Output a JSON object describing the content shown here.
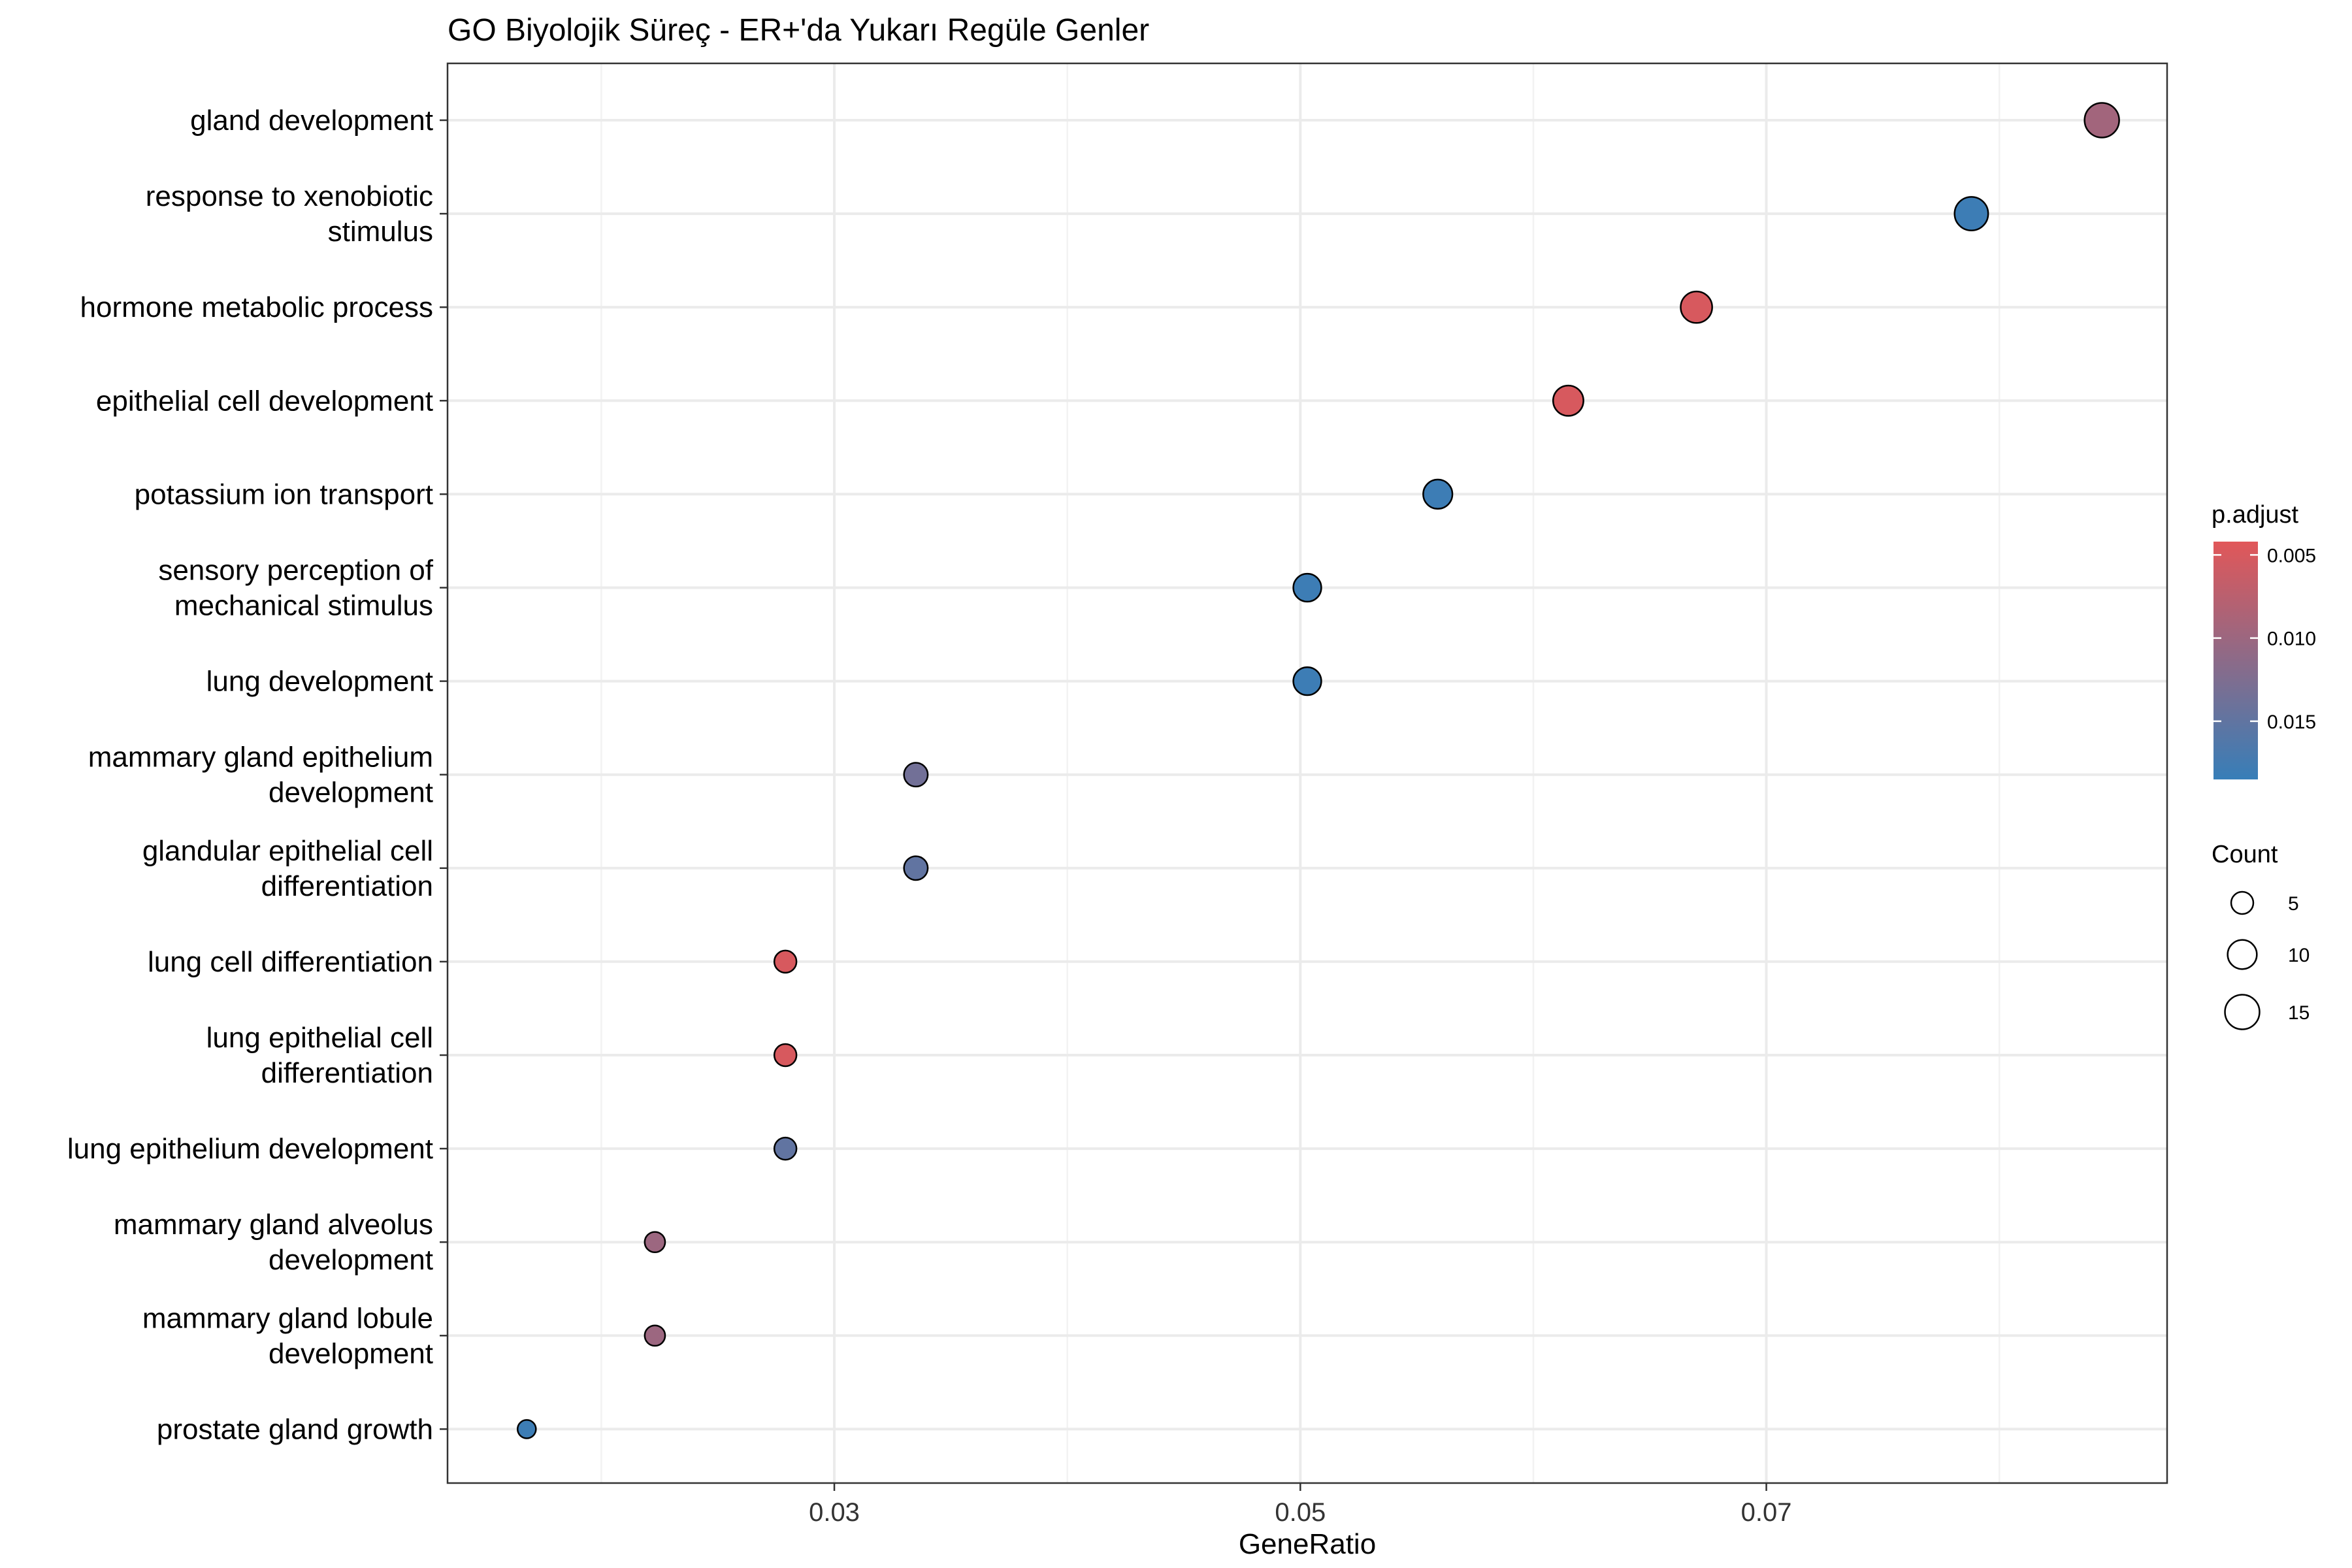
{
  "chart_data": {
    "type": "scatter",
    "title": "GO Biyolojik Süreç - ER+'da Yukarı Regüle Genler",
    "xlabel": "GeneRatio",
    "ylabel": "",
    "xlim": [
      0.0134,
      0.0872
    ],
    "x_ticks": [
      {
        "value": 0.03,
        "label": "0.03"
      },
      {
        "value": 0.05,
        "label": "0.05"
      },
      {
        "value": 0.07,
        "label": "0.07"
      }
    ],
    "grid": true,
    "categories": [
      "gland development",
      "response to xenobiotic stimulus",
      "hormone metabolic process",
      "epithelial cell development",
      "potassium ion transport",
      "sensory perception of mechanical stimulus",
      "lung development",
      "mammary gland epithelium development",
      "glandular epithelial cell differentiation",
      "lung cell differentiation",
      "lung epithelial cell differentiation",
      "lung epithelium development",
      "mammary gland alveolus development",
      "mammary gland lobule development",
      "prostate gland growth"
    ],
    "category_labels": [
      [
        "gland development"
      ],
      [
        "response to xenobiotic",
        "stimulus"
      ],
      [
        "hormone metabolic process"
      ],
      [
        "epithelial cell development"
      ],
      [
        "potassium ion transport"
      ],
      [
        "sensory perception of",
        "mechanical stimulus"
      ],
      [
        "lung development"
      ],
      [
        "mammary gland epithelium",
        "development"
      ],
      [
        "glandular epithelial cell",
        "differentiation"
      ],
      [
        "lung cell differentiation"
      ],
      [
        "lung epithelial cell",
        "differentiation"
      ],
      [
        "lung epithelium development"
      ],
      [
        "mammary gland alveolus",
        "development"
      ],
      [
        "mammary gland lobule",
        "development"
      ],
      [
        "prostate gland growth"
      ]
    ],
    "points": [
      {
        "term": "gland development",
        "gene_ratio": 0.0844,
        "count": 15,
        "p_adjust": 0.0095
      },
      {
        "term": "response to xenobiotic stimulus",
        "gene_ratio": 0.0788,
        "count": 14,
        "p_adjust": 0.018
      },
      {
        "term": "hormone metabolic process",
        "gene_ratio": 0.067,
        "count": 12,
        "p_adjust": 0.005
      },
      {
        "term": "epithelial cell development",
        "gene_ratio": 0.0615,
        "count": 11,
        "p_adjust": 0.005
      },
      {
        "term": "potassium ion transport",
        "gene_ratio": 0.0559,
        "count": 10,
        "p_adjust": 0.018
      },
      {
        "term": "sensory perception of mechanical stimulus",
        "gene_ratio": 0.0503,
        "count": 9,
        "p_adjust": 0.018
      },
      {
        "term": "lung development",
        "gene_ratio": 0.0503,
        "count": 9,
        "p_adjust": 0.018
      },
      {
        "term": "mammary gland epithelium development",
        "gene_ratio": 0.0335,
        "count": 6,
        "p_adjust": 0.0135
      },
      {
        "term": "glandular epithelial cell differentiation",
        "gene_ratio": 0.0335,
        "count": 6,
        "p_adjust": 0.015
      },
      {
        "term": "lung cell differentiation",
        "gene_ratio": 0.0279,
        "count": 5,
        "p_adjust": 0.005
      },
      {
        "term": "lung epithelial cell differentiation",
        "gene_ratio": 0.0279,
        "count": 5,
        "p_adjust": 0.005
      },
      {
        "term": "lung epithelium development",
        "gene_ratio": 0.0279,
        "count": 5,
        "p_adjust": 0.015
      },
      {
        "term": "mammary gland alveolus development",
        "gene_ratio": 0.0223,
        "count": 4,
        "p_adjust": 0.01
      },
      {
        "term": "mammary gland lobule development",
        "gene_ratio": 0.0223,
        "count": 4,
        "p_adjust": 0.01
      },
      {
        "term": "prostate gland growth",
        "gene_ratio": 0.0168,
        "count": 3,
        "p_adjust": 0.018
      }
    ],
    "color_legend": {
      "title": "p.adjust",
      "low_color": "#e15759",
      "high_color": "#377eb8",
      "range": [
        0.0042,
        0.0185
      ],
      "breaks": [
        {
          "value": 0.005,
          "label": "0.005"
        },
        {
          "value": 0.01,
          "label": "0.010"
        },
        {
          "value": 0.015,
          "label": "0.015"
        }
      ]
    },
    "size_legend": {
      "title": "Count",
      "breaks": [
        {
          "value": 5,
          "label": "5"
        },
        {
          "value": 10,
          "label": "10"
        },
        {
          "value": 15,
          "label": "15"
        }
      ]
    },
    "legend_position": "right"
  }
}
